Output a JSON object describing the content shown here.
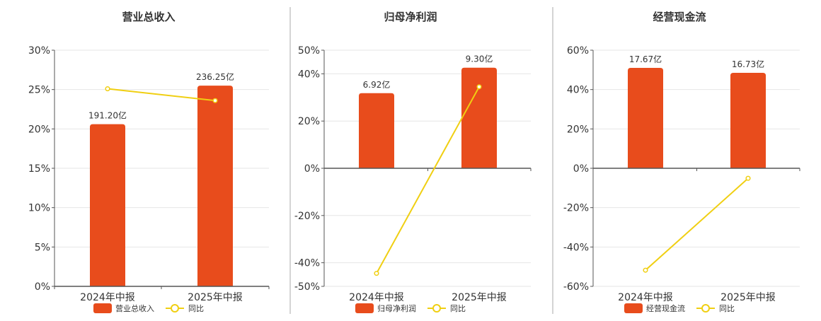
{
  "colors": {
    "bar": "#e84c1c",
    "line": "#f0cf12",
    "grid": "#e6e6e6",
    "axis": "#555555",
    "text": "#333333",
    "divider": "#aaaaaa"
  },
  "chart_data": [
    {
      "type": "bar",
      "title": "营业总收入",
      "categories": [
        "2024年中报",
        "2025年中报"
      ],
      "yticks": [
        "0%",
        "5%",
        "10%",
        "15%",
        "20%",
        "25%",
        "30%"
      ],
      "ylim": [
        0,
        30
      ],
      "grid": true,
      "legend_position": "bottom",
      "series": [
        {
          "name": "营业总收入",
          "kind": "bar",
          "values": [
            20.6,
            25.5
          ],
          "labels": [
            "191.20亿",
            "236.25亿"
          ]
        },
        {
          "name": "同比",
          "kind": "line",
          "values": [
            25.1,
            23.6
          ]
        }
      ]
    },
    {
      "type": "bar",
      "title": "归母净利润",
      "categories": [
        "2024年中报",
        "2025年中报"
      ],
      "yticks": [
        "-50%",
        "-40%",
        "-20%",
        "0%",
        "20%",
        "40%",
        "50%"
      ],
      "ylim": [
        -50,
        50
      ],
      "grid": true,
      "legend_position": "bottom",
      "series": [
        {
          "name": "归母净利润",
          "kind": "bar",
          "values": [
            31.8,
            42.6
          ],
          "labels": [
            "6.92亿",
            "9.30亿"
          ]
        },
        {
          "name": "同比",
          "kind": "line",
          "values": [
            -44.5,
            34.5
          ]
        }
      ]
    },
    {
      "type": "bar",
      "title": "经营现金流",
      "categories": [
        "2024年中报",
        "2025年中报"
      ],
      "yticks": [
        "-60%",
        "-40%",
        "-20%",
        "0%",
        "20%",
        "40%",
        "60%"
      ],
      "ylim": [
        -60,
        60
      ],
      "grid": true,
      "legend_position": "bottom",
      "series": [
        {
          "name": "经营现金流",
          "kind": "bar",
          "values": [
            51.0,
            48.5
          ],
          "labels": [
            "17.67亿",
            "16.73亿"
          ]
        },
        {
          "name": "同比",
          "kind": "line",
          "values": [
            -51.8,
            -5.1
          ]
        }
      ]
    }
  ]
}
